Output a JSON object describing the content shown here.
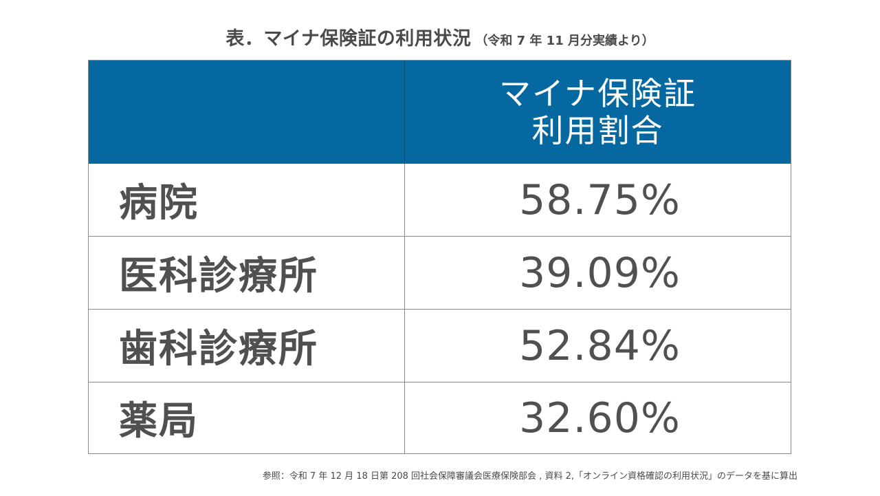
{
  "title": {
    "main": "表．マイナ保険証の利用状況",
    "sub": "（令和 7 年 11 月分実績より）"
  },
  "table": {
    "header": {
      "left": "",
      "right_line1": "マイナ保険証",
      "right_line2": "利用割合"
    },
    "header_color": "#0668a0",
    "rows": [
      {
        "label": "病院",
        "value": "58.75%"
      },
      {
        "label": "医科診療所",
        "value": "39.09%"
      },
      {
        "label": "歯科診療所",
        "value": "52.84%"
      },
      {
        "label": "薬局",
        "value": "32.60%"
      }
    ]
  },
  "footnote": "参照：令和 7 年 12 月 18 日第 208 回社会保障審議会医療保険部会 , 資料 2,「オンライン資格確認の利用状況」のデータを基に算出"
}
